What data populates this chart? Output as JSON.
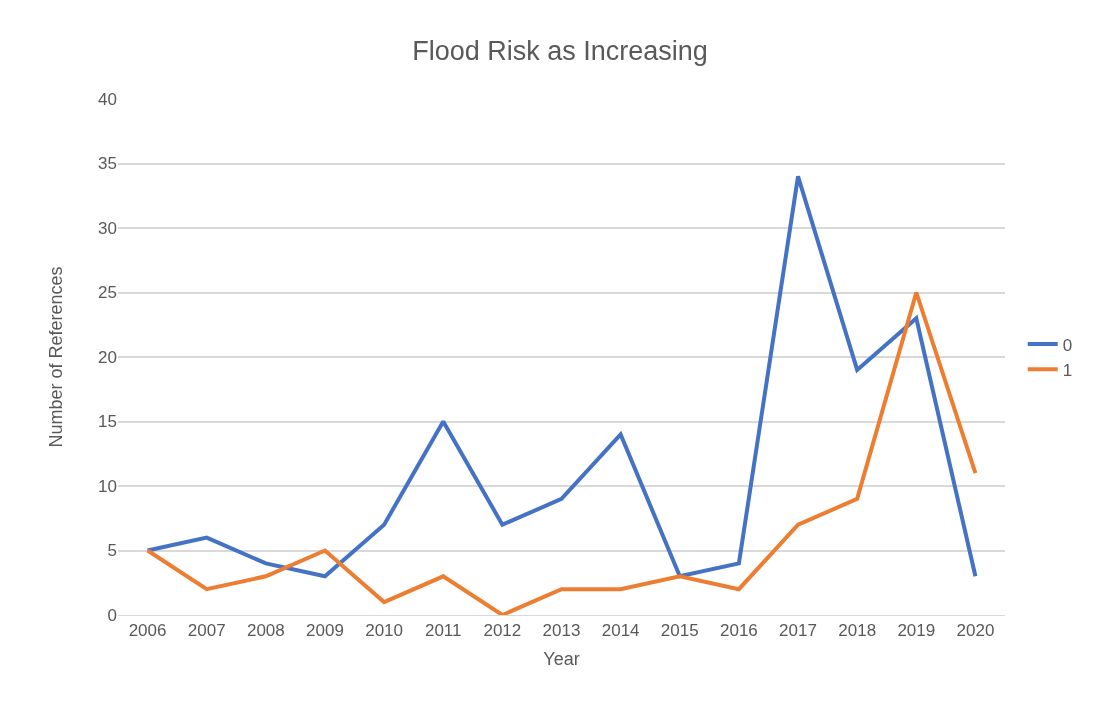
{
  "chart_data": {
    "type": "line",
    "title": "Flood Risk as Increasing",
    "xlabel": "Year",
    "ylabel": "Number of References",
    "categories": [
      "2006",
      "2007",
      "2008",
      "2009",
      "2010",
      "2011",
      "2012",
      "2013",
      "2014",
      "2015",
      "2016",
      "2017",
      "2018",
      "2019",
      "2020"
    ],
    "series": [
      {
        "name": "0",
        "color": "#4472c4",
        "values": [
          5,
          6,
          4,
          3,
          7,
          15,
          7,
          9,
          14,
          3,
          4,
          34,
          19,
          23,
          3
        ]
      },
      {
        "name": "1",
        "color": "#ed7d31",
        "values": [
          5,
          2,
          3,
          5,
          1,
          3,
          0,
          2,
          2,
          3,
          2,
          7,
          9,
          25,
          11
        ]
      }
    ],
    "ylim": [
      0,
      40
    ],
    "yticks": [
      0,
      5,
      10,
      15,
      20,
      25,
      30,
      35,
      40
    ],
    "grid": "y",
    "legend": "right",
    "marker": "none",
    "line_style": "solid"
  }
}
